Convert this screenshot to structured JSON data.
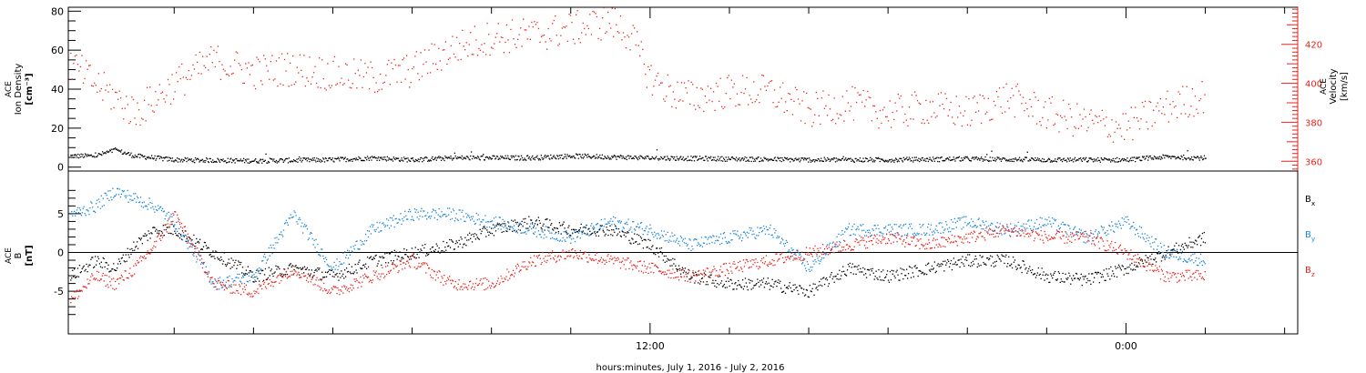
{
  "colors": {
    "black": "#000000",
    "red": "#e8231c",
    "blue": "#1a86d8",
    "density": "#000000",
    "velocity": "#e8231c"
  },
  "xaxis": {
    "label": "hours:minutes, July  1, 2016 - July  2, 2016",
    "hours_range": [
      -2.67,
      28.33
    ],
    "tick_labels": [
      {
        "hours": 12,
        "label": "12:00"
      },
      {
        "hours": 24,
        "label": "0:00"
      }
    ],
    "minor_every_hours": 2,
    "data_end_hours": 26.0
  },
  "chart_data": [
    {
      "type": "scatter",
      "panel": "top",
      "ylabel_left_lines": [
        "ACE",
        "Ion Density"
      ],
      "ylabel_left_unit": "[cm⁻³]",
      "ylabel_right_lines": [
        "ACE",
        "Velocity"
      ],
      "ylabel_right_unit": "[km/s]",
      "ylim_left": [
        -2,
        82
      ],
      "yticks_left": [
        0,
        20,
        40,
        60,
        80
      ],
      "ylim_right": [
        355,
        439
      ],
      "yticks_right": [
        360,
        380,
        400,
        420
      ],
      "series": [
        {
          "axis": "left",
          "color": "density",
          "points": [
            [
              -2.6,
              6
            ],
            [
              -2,
              6
            ],
            [
              -1.5,
              9
            ],
            [
              -1,
              6
            ],
            [
              0,
              4
            ],
            [
              2,
              3.5
            ],
            [
              4,
              4
            ],
            [
              5,
              5
            ],
            [
              6,
              4
            ],
            [
              7,
              5
            ],
            [
              8,
              5
            ],
            [
              9,
              5
            ],
            [
              10,
              6
            ],
            [
              11,
              5.5
            ],
            [
              12,
              5
            ],
            [
              14,
              4.5
            ],
            [
              16,
              4
            ],
            [
              18,
              4
            ],
            [
              20,
              4.5
            ],
            [
              22,
              4
            ],
            [
              24,
              4
            ],
            [
              25,
              5.5
            ],
            [
              26,
              5
            ]
          ]
        },
        {
          "axis": "right",
          "color": "velocity",
          "points": [
            [
              -2.6,
              410
            ],
            [
              -2,
              400
            ],
            [
              -1.5,
              393
            ],
            [
              -1,
              385
            ],
            [
              0,
              400
            ],
            [
              1,
              412
            ],
            [
              2,
              406
            ],
            [
              3,
              408
            ],
            [
              4,
              405
            ],
            [
              5,
              403
            ],
            [
              6,
              407
            ],
            [
              7,
              418
            ],
            [
              8,
              424
            ],
            [
              9,
              425
            ],
            [
              10,
              428
            ],
            [
              11,
              432
            ],
            [
              11.5,
              425
            ],
            [
              12,
              403
            ],
            [
              12.5,
              396
            ],
            [
              13,
              393
            ],
            [
              14,
              396
            ],
            [
              15,
              396
            ],
            [
              16,
              386
            ],
            [
              17,
              390
            ],
            [
              18,
              385
            ],
            [
              19,
              388
            ],
            [
              20,
              385
            ],
            [
              21,
              393
            ],
            [
              22,
              385
            ],
            [
              23,
              380
            ],
            [
              24,
              378
            ],
            [
              25,
              388
            ],
            [
              26,
              394
            ]
          ]
        }
      ]
    },
    {
      "type": "scatter",
      "panel": "bottom",
      "ylabel_lines": [
        "ACE",
        "B"
      ],
      "ylabel_unit": "[nT]",
      "ylim": [
        -10.5,
        10.5
      ],
      "yticks": [
        -5,
        0,
        5
      ],
      "zero_line": true,
      "series": [
        {
          "name": "Bx",
          "legend_text": "B",
          "legend_sub": "x",
          "color": "black",
          "points": [
            [
              -2.6,
              -3
            ],
            [
              -2,
              -1
            ],
            [
              -1.5,
              -2
            ],
            [
              -1,
              1
            ],
            [
              -0.5,
              3
            ],
            [
              0,
              3
            ],
            [
              1,
              0
            ],
            [
              2,
              -3
            ],
            [
              3,
              -2
            ],
            [
              4,
              -3
            ],
            [
              5,
              -1
            ],
            [
              6,
              0
            ],
            [
              7,
              1
            ],
            [
              8,
              3
            ],
            [
              9,
              4
            ],
            [
              10,
              3
            ],
            [
              11,
              3
            ],
            [
              12,
              1
            ],
            [
              13,
              -3
            ],
            [
              14,
              -4
            ],
            [
              15,
              -4
            ],
            [
              16,
              -5
            ],
            [
              17,
              -2
            ],
            [
              18,
              -3
            ],
            [
              19,
              -2
            ],
            [
              20,
              -1
            ],
            [
              21,
              -1
            ],
            [
              22,
              -3
            ],
            [
              23,
              -3.5
            ],
            [
              24,
              -2
            ],
            [
              25,
              0
            ],
            [
              26,
              2
            ]
          ]
        },
        {
          "name": "By",
          "legend_text": "B",
          "legend_sub": "y",
          "color": "blue",
          "points": [
            [
              -2.6,
              5
            ],
            [
              -2,
              6
            ],
            [
              -1.5,
              8
            ],
            [
              -1,
              7
            ],
            [
              -0.5,
              6
            ],
            [
              0,
              4
            ],
            [
              1,
              -4
            ],
            [
              2,
              -3
            ],
            [
              3,
              5
            ],
            [
              4,
              -2
            ],
            [
              5,
              3
            ],
            [
              6,
              5
            ],
            [
              7,
              5
            ],
            [
              8,
              4
            ],
            [
              9,
              3
            ],
            [
              10,
              2
            ],
            [
              11,
              4
            ],
            [
              12,
              3
            ],
            [
              13,
              1
            ],
            [
              14,
              2
            ],
            [
              15,
              3
            ],
            [
              16,
              -2
            ],
            [
              17,
              3
            ],
            [
              18,
              3
            ],
            [
              19,
              3
            ],
            [
              20,
              4
            ],
            [
              21,
              3
            ],
            [
              22,
              4
            ],
            [
              23,
              2
            ],
            [
              24,
              4
            ],
            [
              25,
              0
            ],
            [
              26,
              -1
            ]
          ]
        },
        {
          "name": "Bz",
          "legend_text": "B",
          "legend_sub": "z",
          "color": "red",
          "points": [
            [
              -2.6,
              -6
            ],
            [
              -2,
              -3
            ],
            [
              -1.5,
              -4
            ],
            [
              -1,
              -2
            ],
            [
              -0.5,
              1
            ],
            [
              0,
              5
            ],
            [
              1,
              -4
            ],
            [
              2,
              -5
            ],
            [
              3,
              -2
            ],
            [
              4,
              -5
            ],
            [
              5,
              -3
            ],
            [
              6,
              -1
            ],
            [
              7,
              -4
            ],
            [
              8,
              -4
            ],
            [
              9,
              -1
            ],
            [
              10,
              0
            ],
            [
              11,
              -1
            ],
            [
              12,
              -2
            ],
            [
              13,
              -3
            ],
            [
              14,
              -2
            ],
            [
              15,
              -1
            ],
            [
              16,
              0
            ],
            [
              17,
              1
            ],
            [
              18,
              2
            ],
            [
              19,
              1
            ],
            [
              20,
              2
            ],
            [
              21,
              3
            ],
            [
              22,
              2
            ],
            [
              23,
              2
            ],
            [
              24,
              0
            ],
            [
              25,
              -3
            ],
            [
              26,
              -3
            ]
          ]
        }
      ]
    }
  ]
}
